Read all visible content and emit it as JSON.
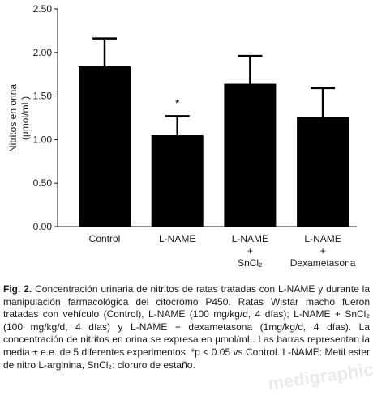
{
  "chart_data": {
    "type": "bar",
    "title": "",
    "xlabel": "",
    "ylabel": [
      "Nitritos en orina",
      "(µmol/mL)"
    ],
    "ylim": [
      0,
      2.5
    ],
    "yticks": [
      "0.00",
      "0.50",
      "1.00",
      "1.50",
      "2.00",
      "2.50"
    ],
    "ytick_values": [
      0,
      0.5,
      1.0,
      1.5,
      2.0,
      2.5
    ],
    "categories": [
      [
        "Control"
      ],
      [
        "L-NAME"
      ],
      [
        "L-NAME",
        "+",
        "SnCl₂"
      ],
      [
        "L-NAME",
        "+",
        "Dexametasona"
      ]
    ],
    "values": [
      1.84,
      1.05,
      1.64,
      1.26
    ],
    "errors": [
      0.32,
      0.22,
      0.32,
      0.33
    ],
    "annotations": [
      {
        "category_index": 1,
        "text": "*"
      }
    ],
    "bar_color": "#000000",
    "grid": false,
    "legend": "none"
  },
  "caption": {
    "label": "Fig. 2.",
    "text": "Concentración urinaria de nitritos de ratas tratadas con L-NAME y durante la manipulación farmacológica del citocromo P450. Ratas Wistar macho fueron tratadas con vehículo (Control), L-NAME (100 mg/kg/d, 4 días); L-NAME + SnCl₂ (100 mg/kg/d, 4 días) y L-NAME + dexametasona (1mg/kg/d, 4 días). La concentración de nitritos en orina se expresa en µmol/mL. Las barras representan la media ± e.e. de 5 diferentes experimentos. *p < 0.05 vs Control. L-NAME: Metil ester de nitro L-arginina, SnCl₂: cloruro de estaño."
  },
  "watermark": "medigraphic"
}
